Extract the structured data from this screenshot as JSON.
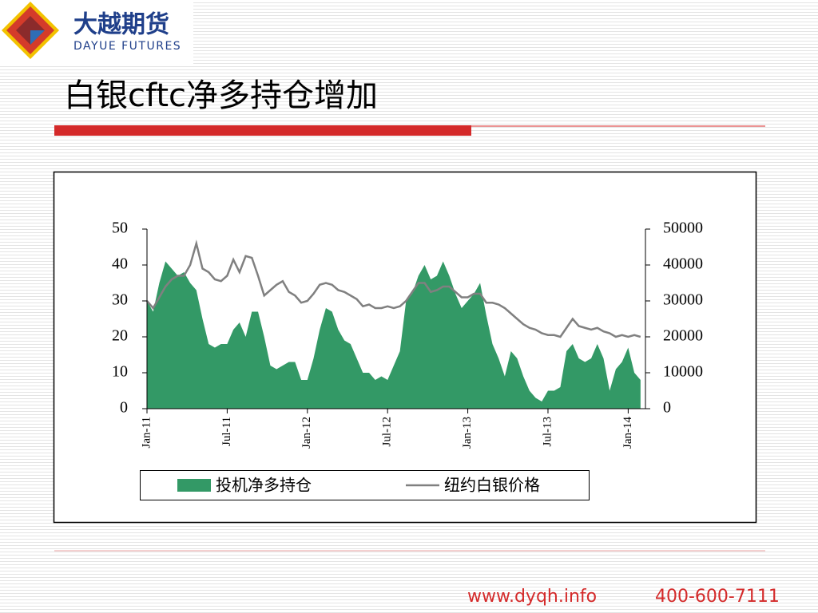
{
  "logo": {
    "name": "大越期货",
    "subtitle": "DAYUE FUTURES"
  },
  "footer": {
    "website": "www.dyqh.info",
    "phone": "400-600-7111"
  },
  "chart_data": {
    "type": "line",
    "title": "白银cftc净多持仓增加",
    "categories": [
      "Jan-11",
      null,
      null,
      null,
      null,
      null,
      null,
      null,
      null,
      null,
      null,
      null,
      null,
      "Jul-11",
      null,
      null,
      null,
      null,
      null,
      null,
      null,
      null,
      null,
      null,
      null,
      null,
      "Jan-12",
      null,
      null,
      null,
      null,
      null,
      null,
      null,
      null,
      null,
      null,
      null,
      null,
      "Jul-12",
      null,
      null,
      null,
      null,
      null,
      null,
      null,
      null,
      null,
      null,
      null,
      null,
      "Jan-13",
      null,
      null,
      null,
      null,
      null,
      null,
      null,
      null,
      null,
      null,
      null,
      null,
      "Jul-13",
      null,
      null,
      null,
      null,
      null,
      null,
      null,
      null,
      null,
      null,
      null,
      null,
      "Jan-14",
      null,
      null
    ],
    "series": [
      {
        "name": "投机净多持仓",
        "kind": "area",
        "axis": "y2",
        "color": "#339966",
        "values": [
          30000,
          27000,
          35000,
          41000,
          39000,
          37000,
          38000,
          35000,
          33000,
          25000,
          18000,
          17000,
          18000,
          18000,
          22000,
          24000,
          20000,
          27000,
          27000,
          20000,
          12000,
          11000,
          12000,
          13000,
          13000,
          8000,
          8000,
          14000,
          22000,
          28000,
          27000,
          22000,
          19000,
          18000,
          14000,
          10000,
          10000,
          8000,
          9000,
          8000,
          12000,
          16000,
          30000,
          32000,
          37000,
          40000,
          36000,
          37000,
          41000,
          37000,
          32000,
          28000,
          30000,
          32000,
          35000,
          26000,
          18000,
          14000,
          9000,
          16000,
          14000,
          9000,
          5000,
          3000,
          2000,
          5000,
          5000,
          6000,
          16000,
          18000,
          14000,
          13000,
          14000,
          18000,
          14000,
          5000,
          11000,
          13000,
          17000,
          10000,
          8000
        ]
      },
      {
        "name": "纽约白银价格",
        "kind": "line",
        "color": "#808080",
        "values": [
          30,
          28,
          31,
          34,
          36,
          37,
          37,
          40,
          46,
          39,
          38,
          36,
          35.5,
          37,
          41.5,
          38,
          42.5,
          42,
          37,
          31.5,
          33,
          34.5,
          35.5,
          32.5,
          31.5,
          29.5,
          30,
          32,
          34.5,
          35,
          34.5,
          33,
          32.5,
          31.5,
          30.5,
          28.5,
          29,
          28,
          28,
          28.5,
          28,
          28.5,
          30,
          32.5,
          35,
          35,
          32.5,
          33,
          34,
          34,
          32.5,
          31,
          31,
          32,
          32,
          29.5,
          29.5,
          29,
          28,
          26.5,
          25,
          23.5,
          22.5,
          22,
          21,
          20.5,
          20.5,
          20,
          22.5,
          25,
          23,
          22.5,
          22,
          22.5,
          21.5,
          21,
          20,
          20.5,
          20,
          20.5,
          20
        ]
      }
    ],
    "ylim": [
      0,
      50
    ],
    "yticks": [
      0,
      10,
      20,
      30,
      40,
      50
    ],
    "y2lim": [
      0,
      50000
    ],
    "y2ticks": [
      0,
      10000,
      20000,
      30000,
      40000,
      50000
    ]
  }
}
